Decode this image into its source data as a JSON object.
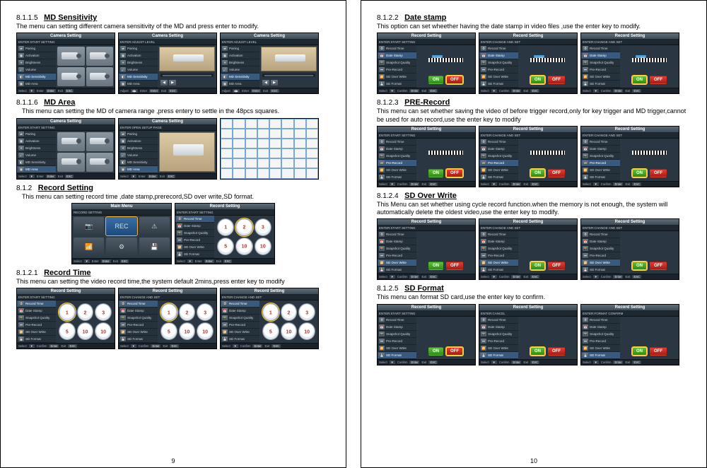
{
  "pages": {
    "left_num": "9",
    "right_num": "10"
  },
  "left": {
    "s1": {
      "num": "8.1.1.5",
      "title": "MD Sensitivity",
      "desc": "The menu can setting different camera sensitivity of the MD and press enter to modify.",
      "panel_title": "Camera Setting",
      "subbars": [
        "ENTER:START SETTING",
        "ENTER:ADJUST LEVEL",
        "ENTER:ADJUST LEVEL"
      ],
      "menu": [
        "Pairing",
        "Activation",
        "Brightness",
        "Volume",
        "MD Sensitivity",
        "MD Area"
      ],
      "sel_idx": 4
    },
    "s2": {
      "num": "8.1.1.6",
      "title": "MD Area",
      "desc": "This menu can setting the MD of camera range ,press entery to settle in the 48pcs squares.",
      "panel_title": "Camera Setting",
      "subbars": [
        "ENTER:START SETTING",
        "ENTER:OPEN SETUP PAGE",
        ""
      ],
      "menu": [
        "Pairing",
        "Activation",
        "Brightness",
        "Volume",
        "MD Sensitivity",
        "MD Area"
      ],
      "sel_idx": 5
    },
    "s3": {
      "num": "8.1.2",
      "title": "Record Setting",
      "desc": "This menu can setting record time ,date stamp,prerecord,SD over write,SD format.",
      "main_title": "Main Menu",
      "main_sub": "RECORD SETTING",
      "rec_title": "Record Setting",
      "rec_sub": "ENTER:START SETTING",
      "rec_menu": [
        "Record Time",
        "Date Stamp",
        "Snapshot Quality",
        "Pre-Record",
        "SD Over Write",
        "SD Format"
      ]
    },
    "s4": {
      "num": "8.1.2.1",
      "title": "Record Time",
      "desc": "This menu can setting the video record time,the system default 2mins,press enter key to modify",
      "panel_title": "Record Setting",
      "subbars": [
        "ENTER:START SETTING",
        "ENTER:CHANGE AND SET",
        "ENTER:CHANGE AND SET"
      ],
      "menu": [
        "Record Time",
        "Date Stamp",
        "Snapshot Quality",
        "Pre-Record",
        "SD Over Write",
        "SD Format"
      ],
      "sel_idx": 0,
      "clocks": [
        "1",
        "2",
        "3",
        "5",
        "10",
        "10"
      ]
    }
  },
  "right": {
    "s1": {
      "num": "8.1.2.2",
      "title": "Date stamp",
      "desc": "This option can set wheether having the date stamp in video files ,use the enter key to modify.",
      "panel_title": "Record Setting",
      "subbars": [
        "ENTER:START SETTING",
        "ENTER:CHANGE AND SET",
        "ENTER:CHANGE AND SET"
      ],
      "menu": [
        "Record Time",
        "Date Stamp",
        "Snapshot Quality",
        "Pre-Record",
        "SD Over Write",
        "SD Format"
      ],
      "sel_idx": 1,
      "tag": "1.JAN"
    },
    "s2": {
      "num": "8.1.2.3",
      "title": "PRE-Record",
      "desc": "This menu can set whether saving the video of before trigger record,only for key trigger and MD trigger,cannot be used for auto record,use the enter key to modify",
      "panel_title": "Record Setting",
      "subbars": [
        "ENTER:START SETTING",
        "ENTER:CHANGE AND SET",
        "ENTER:CHANGE AND SET"
      ],
      "menu": [
        "Record Time",
        "Date Stamp",
        "Snapshot Quality",
        "Pre-Record",
        "SD Over Write",
        "SD Format"
      ],
      "sel_idx": 3
    },
    "s3": {
      "num": "8.1.2.4",
      "title": "SD Over Write",
      "desc": "This Menu can set whether  using cycle record function.when the memory is not enough, the system will automatically delete the oldest video,use the enter key to modify.",
      "panel_title": "Record Setting",
      "subbars": [
        "ENTER:START SETTING",
        "ENTER:CHANGE AND SET",
        "ENTER:CHANGE AND SET"
      ],
      "menu": [
        "Record Time",
        "Date Stamp",
        "Snapshot Quality",
        "Pre-Record",
        "SD Over Write",
        "SD Format"
      ],
      "sel_idx": 4
    },
    "s4": {
      "num": "8.1.2.5",
      "title": "SD Format",
      "desc": "This menu can format SD card,use the enter key to confirm.",
      "panel_title": "Record Setting",
      "subbars": [
        "ENTER:START SETTING",
        "ENTER:CANCEL",
        "ENTER:FORMAT CONFIRM"
      ],
      "menu": [
        "Record Time",
        "Date Stamp",
        "Snapshot Quality",
        "Pre-Record",
        "SD Over Write",
        "SD Format"
      ],
      "sel_idx": 5
    }
  },
  "footer_items": [
    "Select",
    "Confirm",
    "Enter",
    "Exit",
    "ESC",
    "Adjust"
  ],
  "onoff": {
    "on": "ON",
    "off": "OFF"
  },
  "colors": {
    "panel_bg": "#2d3b47",
    "highlight": "#ffcf3d",
    "green": "#3fa026",
    "red": "#cc2a20",
    "blue_tag": "#4a9edb",
    "grid_line": "#7aa8d4"
  }
}
